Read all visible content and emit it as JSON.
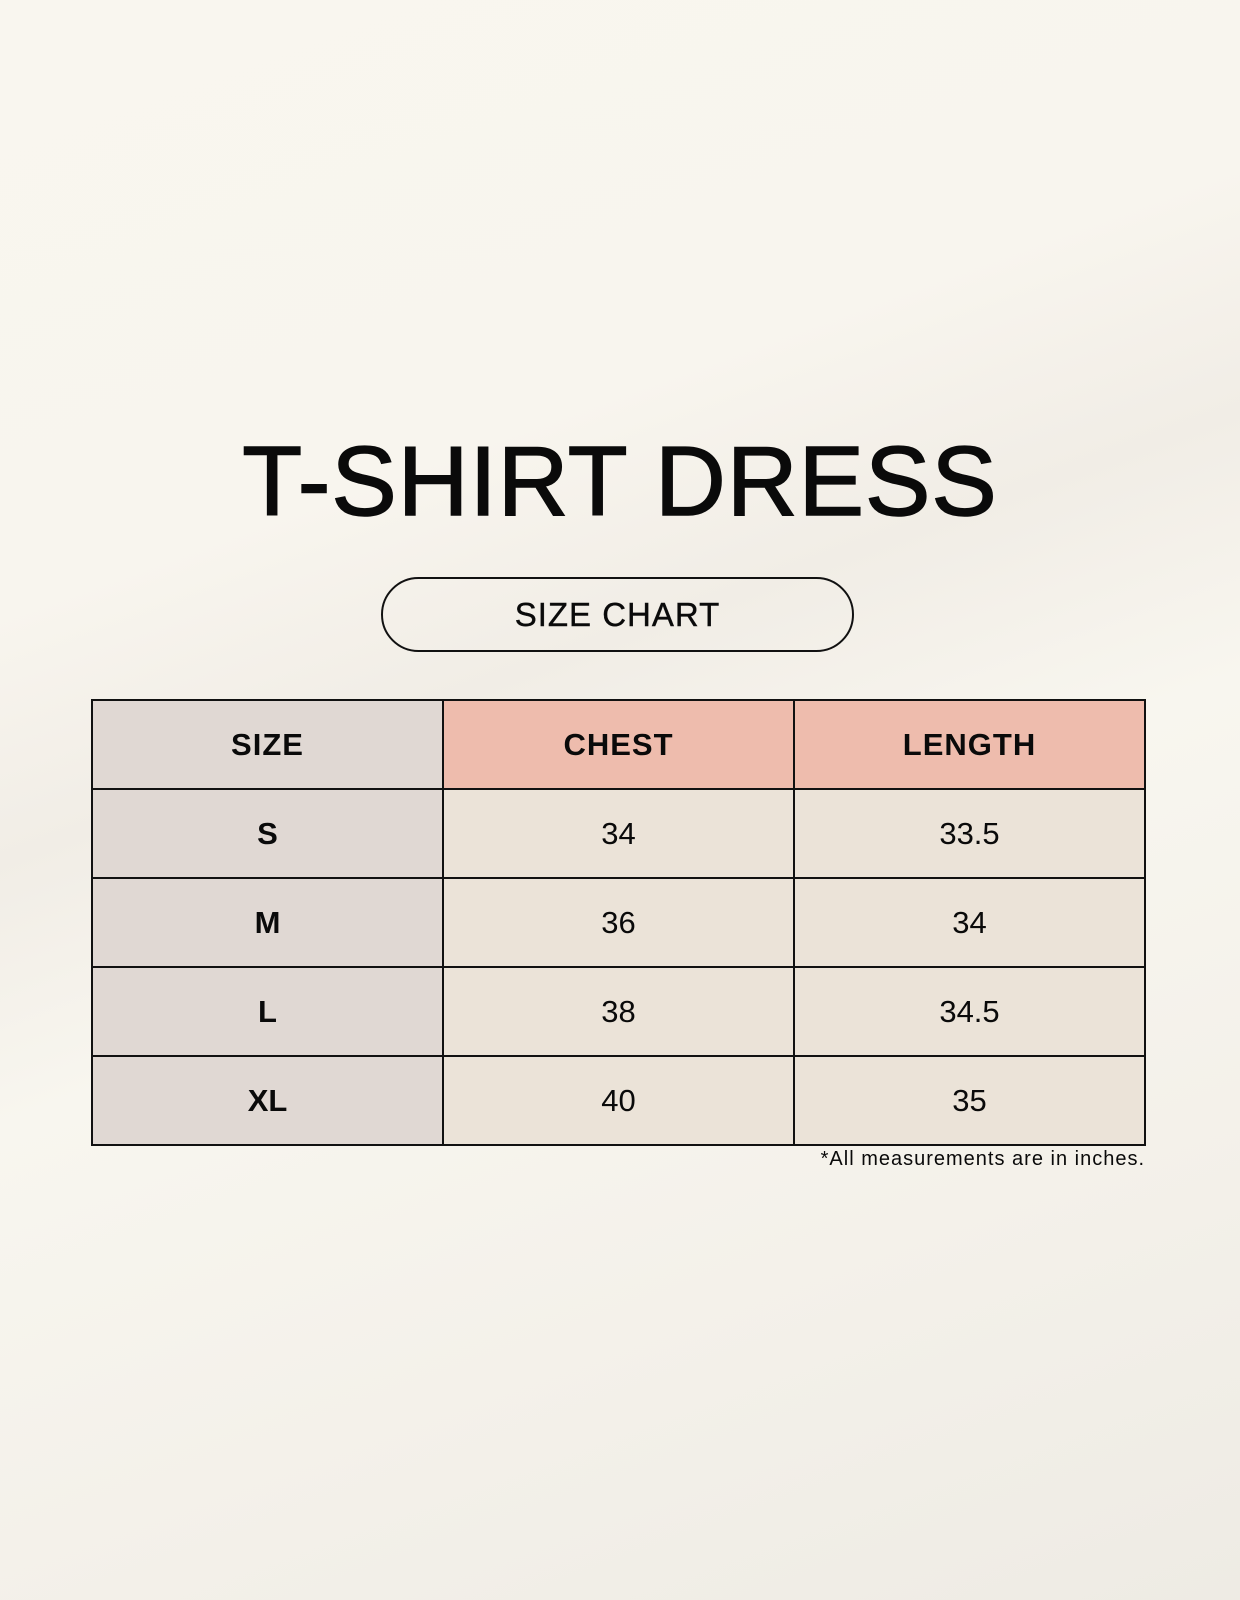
{
  "title": "T-SHIRT DRESS",
  "subtitle": "SIZE CHART",
  "table": {
    "headers": [
      "SIZE",
      "CHEST",
      "LENGTH"
    ],
    "rows": [
      [
        "S",
        "34",
        "33.5"
      ],
      [
        "M",
        "36",
        "34"
      ],
      [
        "L",
        "38",
        "34.5"
      ],
      [
        "XL",
        "40",
        "35"
      ]
    ]
  },
  "footnote": "*All measurements are in inches.",
  "colors": {
    "size_column": "#e0d8d3",
    "header_accent": "#eebcad",
    "value_cells": "#ebe3d8"
  }
}
